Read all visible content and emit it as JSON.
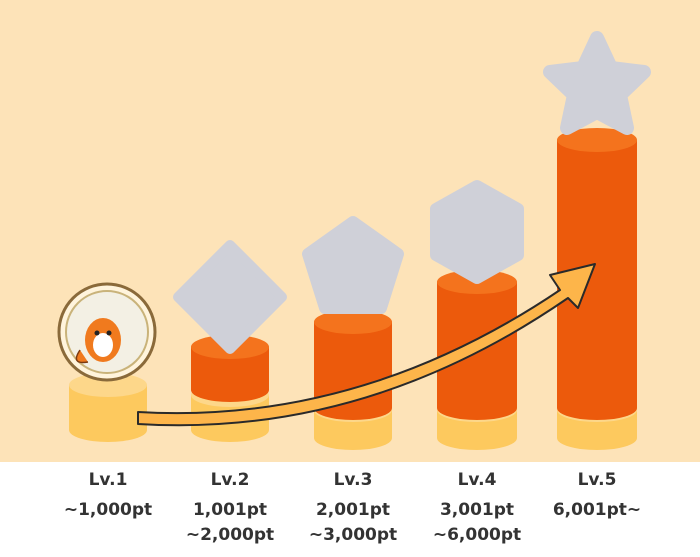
{
  "levels": [
    {
      "label": "Lv.1",
      "range": [
        "~1,000pt"
      ]
    },
    {
      "label": "Lv.2",
      "range": [
        "1,001pt",
        "~2,000pt"
      ]
    },
    {
      "label": "Lv.3",
      "range": [
        "2,001pt",
        "~3,000pt"
      ]
    },
    {
      "label": "Lv.4",
      "range": [
        "3,001pt",
        "~6,000pt"
      ]
    },
    {
      "label": "Lv.5",
      "range": [
        "6,001pt~"
      ]
    }
  ]
}
